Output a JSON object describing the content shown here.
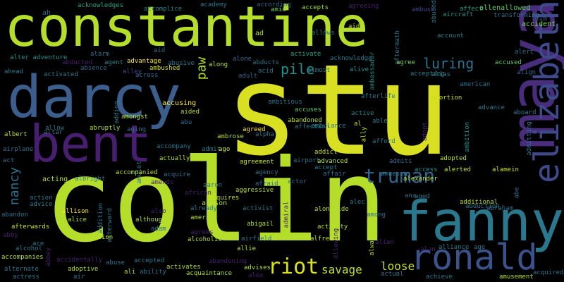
{
  "words": [
    {
      "text": "stu",
      "color": "#d9e021",
      "vertical": false
    },
    {
      "text": "colin",
      "color": "#b5de2b",
      "vertical": false
    },
    {
      "text": "constantine",
      "color": "#b5de2b",
      "vertical": false
    },
    {
      "text": "darcy",
      "color": "#3b5e8c",
      "vertical": false
    },
    {
      "text": "maya",
      "color": "#472d7b",
      "vertical": true
    },
    {
      "text": "bent",
      "color": "#481f70",
      "vertical": false
    },
    {
      "text": "fanny",
      "color": "#2a788e",
      "vertical": false
    },
    {
      "text": "elizabeth",
      "color": "#3e4a89",
      "vertical": true
    },
    {
      "text": "ronald",
      "color": "#3b528b",
      "vertical": false
    },
    {
      "text": "truman",
      "color": "#33638d",
      "vertical": false
    },
    {
      "text": "riot",
      "color": "#d8e219",
      "vertical": false
    },
    {
      "text": "luring",
      "color": "#2c728e",
      "vertical": false
    },
    {
      "text": "pile",
      "color": "#21918c",
      "vertical": false
    },
    {
      "text": "nancy",
      "color": "#2c718e",
      "vertical": true
    },
    {
      "text": "savage",
      "color": "#c0df25",
      "vertical": false
    },
    {
      "text": "loose",
      "color": "#c8e020",
      "vertical": false
    },
    {
      "text": "paw",
      "color": "#b5de2b",
      "vertical": true
    },
    {
      "text": "aim",
      "color": "#38598c",
      "vertical": false
    },
    {
      "text": "ah",
      "color": "#2e6e8e",
      "vertical": false
    },
    {
      "text": "acknowledges",
      "color": "#22a884",
      "vertical": false
    },
    {
      "text": "accomplice",
      "color": "#25858e",
      "vertical": false
    },
    {
      "text": "academy",
      "color": "#2a788e",
      "vertical": false
    },
    {
      "text": "according",
      "color": "#31688e",
      "vertical": false
    },
    {
      "text": "amid",
      "color": "#7ad151",
      "vertical": false
    },
    {
      "text": "accepts",
      "color": "#a0da39",
      "vertical": false
    },
    {
      "text": "agreeing",
      "color": "#481f70",
      "vertical": false
    },
    {
      "text": "ambush",
      "color": "#3e4989",
      "vertical": false
    },
    {
      "text": "abused",
      "color": "#2a788e",
      "vertical": true
    },
    {
      "text": "affect",
      "color": "#1fa187",
      "vertical": false
    },
    {
      "text": "allenallowed",
      "color": "#5ec962",
      "vertical": false
    },
    {
      "text": "aircraft",
      "color": "#21918c",
      "vertical": false
    },
    {
      "text": "transforming",
      "color": "#2c728e",
      "vertical": false
    },
    {
      "text": "accident",
      "color": "#7ad151",
      "vertical": false
    },
    {
      "text": "account",
      "color": "#26828e",
      "vertical": false
    },
    {
      "text": "ad",
      "color": "#b5de2b",
      "vertical": false
    },
    {
      "text": "allows",
      "color": "#2a788e",
      "vertical": false
    },
    {
      "text": "aide",
      "color": "#c8e020",
      "vertical": false
    },
    {
      "text": "aftermath",
      "color": "#2a788e",
      "vertical": true
    },
    {
      "text": "alter adventure",
      "color": "#21918c",
      "vertical": false
    },
    {
      "text": "aid",
      "color": "#2c728e",
      "vertical": false
    },
    {
      "text": "alarm",
      "color": "#2c728e",
      "vertical": false
    },
    {
      "text": "abducted",
      "color": "#481f70",
      "vertical": false
    },
    {
      "text": "agent",
      "color": "#26828e",
      "vertical": false
    },
    {
      "text": "advantage",
      "color": "#fde725",
      "vertical": false
    },
    {
      "text": "alley",
      "color": "#3e4989",
      "vertical": false
    },
    {
      "text": "ambushed",
      "color": "#d8e219",
      "vertical": false
    },
    {
      "text": "abusive",
      "color": "#2a788e",
      "vertical": false
    },
    {
      "text": "along",
      "color": "#b5de2b",
      "vertical": false
    },
    {
      "text": "alone",
      "color": "#31688e",
      "vertical": false
    },
    {
      "text": "abducts",
      "color": "#2c728e",
      "vertical": false
    },
    {
      "text": "activate",
      "color": "#22a884",
      "vertical": false
    },
    {
      "text": "acknowledge",
      "color": "#2a788e",
      "vertical": false
    },
    {
      "text": "ambassador",
      "color": "#21918c",
      "vertical": true
    },
    {
      "text": "agree",
      "color": "#7ad151",
      "vertical": false
    },
    {
      "text": "accused",
      "color": "#5ec962",
      "vertical": false
    },
    {
      "text": "alert",
      "color": "#2c728e",
      "vertical": false
    },
    {
      "text": "ahead",
      "color": "#2a788e",
      "vertical": false
    },
    {
      "text": "absence",
      "color": "#31688e",
      "vertical": false
    },
    {
      "text": "activated",
      "color": "#2a788e",
      "vertical": false
    },
    {
      "text": "across",
      "color": "#31688e",
      "vertical": false
    },
    {
      "text": "adult",
      "color": "#31688e",
      "vertical": false
    },
    {
      "text": "acid",
      "color": "#2c728e",
      "vertical": false
    },
    {
      "text": "almost",
      "color": "#2a788e",
      "vertical": false
    },
    {
      "text": "alive",
      "color": "#21918c",
      "vertical": false
    },
    {
      "text": "accepting",
      "color": "#26828e",
      "vertical": false
    },
    {
      "text": "alias",
      "color": "#2a788e",
      "vertical": false
    },
    {
      "text": "align",
      "color": "#31688e",
      "vertical": false
    },
    {
      "text": "american",
      "color": "#2c728e",
      "vertical": false
    },
    {
      "text": "afterlife",
      "color": "#2a788e",
      "vertical": false
    },
    {
      "text": "ambitious",
      "color": "#2c728e",
      "vertical": false
    },
    {
      "text": "accuses",
      "color": "#5ec962",
      "vertical": false
    },
    {
      "text": "abortion",
      "color": "#c8e020",
      "vertical": false
    },
    {
      "text": "advance",
      "color": "#2a788e",
      "vertical": false
    },
    {
      "text": "aboard",
      "color": "#2a788e",
      "vertical": false
    },
    {
      "text": "accusing",
      "color": "#fde725",
      "vertical": false
    },
    {
      "text": "adding",
      "color": "#2a788e",
      "vertical": true
    },
    {
      "text": "amongst",
      "color": "#b5de2b",
      "vertical": false
    },
    {
      "text": "aided",
      "color": "#b5de2b",
      "vertical": false
    },
    {
      "text": "abu",
      "color": "#2c728e",
      "vertical": false
    },
    {
      "text": "abandoned",
      "color": "#c0df25",
      "vertical": false
    },
    {
      "text": "affection",
      "color": "#2a788e",
      "vertical": false
    },
    {
      "text": "active",
      "color": "#26828e",
      "vertical": false
    },
    {
      "text": "able",
      "color": "#2a788e",
      "vertical": false
    },
    {
      "text": "admitting",
      "color": "#2c728e",
      "vertical": true
    },
    {
      "text": "albert",
      "color": "#b5de2b",
      "vertical": false
    },
    {
      "text": "allow",
      "color": "#2a788e",
      "vertical": false
    },
    {
      "text": "altar",
      "color": "#2c728e",
      "vertical": false
    },
    {
      "text": "abruptly",
      "color": "#b5de2b",
      "vertical": false
    },
    {
      "text": "aging",
      "color": "#2c728e",
      "vertical": false
    },
    {
      "text": "agreed",
      "color": "#fde725",
      "vertical": false
    },
    {
      "text": "alpha",
      "color": "#2a788e",
      "vertical": false
    },
    {
      "text": "al",
      "color": "#c0df25",
      "vertical": false
    },
    {
      "text": "ally",
      "color": "#c8e020",
      "vertical": true
    },
    {
      "text": "adopt",
      "color": "#481f70",
      "vertical": true
    },
    {
      "text": "ambulance",
      "color": "#2a788e",
      "vertical": false
    },
    {
      "text": "airplane",
      "color": "#2c728e",
      "vertical": false
    },
    {
      "text": "accompany",
      "color": "#2a788e",
      "vertical": false
    },
    {
      "text": "admit",
      "color": "#2a788e",
      "vertical": false
    },
    {
      "text": "ago",
      "color": "#c8e020",
      "vertical": false
    },
    {
      "text": "ambrose",
      "color": "#b5de2b",
      "vertical": false
    },
    {
      "text": "airport",
      "color": "#2c728e",
      "vertical": false
    },
    {
      "text": "addict",
      "color": "#c8e020",
      "vertical": false
    },
    {
      "text": "afford",
      "color": "#2a788e",
      "vertical": false
    },
    {
      "text": "actually",
      "color": "#b5de2b",
      "vertical": false
    },
    {
      "text": "amulet",
      "color": "#2a788e",
      "vertical": true
    },
    {
      "text": "agreement",
      "color": "#c8e020",
      "vertical": false
    },
    {
      "text": "advanced",
      "color": "#b5de2b",
      "vertical": false
    },
    {
      "text": "admits",
      "color": "#31688e",
      "vertical": false
    },
    {
      "text": "accept",
      "color": "#2a788e",
      "vertical": false
    },
    {
      "text": "adopted",
      "color": "#b5de2b",
      "vertical": false
    },
    {
      "text": "ambition",
      "color": "#21918c",
      "vertical": true
    },
    {
      "text": "act",
      "color": "#2c728e",
      "vertical": false
    },
    {
      "text": "affair",
      "color": "#2c728e",
      "vertical": false
    },
    {
      "text": "access",
      "color": "#21918c",
      "vertical": false
    },
    {
      "text": "alerted",
      "color": "#c8e020",
      "vertical": false
    },
    {
      "text": "alamein",
      "color": "#c8e020",
      "vertical": false
    },
    {
      "text": "accompanied",
      "color": "#b5de2b",
      "vertical": false
    },
    {
      "text": "acquire",
      "color": "#2c728e",
      "vertical": false
    },
    {
      "text": "agency",
      "color": "#2c728e",
      "vertical": false
    },
    {
      "text": "amnesia",
      "color": "#2a788e",
      "vertical": false
    },
    {
      "text": "alexander",
      "color": "#b5de2b",
      "vertical": false
    },
    {
      "text": "albright",
      "color": "#2c728e",
      "vertical": false
    },
    {
      "text": "amends",
      "color": "#481f70",
      "vertical": false
    },
    {
      "text": "aaron",
      "color": "#2c728e",
      "vertical": false
    },
    {
      "text": "afraid",
      "color": "#2a788e",
      "vertical": false
    },
    {
      "text": "actor",
      "color": "#31688e",
      "vertical": false
    },
    {
      "text": "alec",
      "color": "#2a788e",
      "vertical": false
    },
    {
      "text": "abe",
      "color": "#2c728e",
      "vertical": true
    },
    {
      "text": "acting",
      "color": "#b5de2b",
      "vertical": false
    },
    {
      "text": "african",
      "color": "#481f70",
      "vertical": false
    },
    {
      "text": "acquires",
      "color": "#c8e020",
      "vertical": false
    },
    {
      "text": "aggressive",
      "color": "#b5de2b",
      "vertical": false
    },
    {
      "text": "ana",
      "color": "#2c728e",
      "vertical": false
    },
    {
      "text": "aged",
      "color": "#2a788e",
      "vertical": false
    },
    {
      "text": "additional",
      "color": "#b5de2b",
      "vertical": false
    },
    {
      "text": "action",
      "color": "#2a788e",
      "vertical": false
    },
    {
      "text": "advice",
      "color": "#2a788e",
      "vertical": false
    },
    {
      "text": "alison",
      "color": "#b5de2b",
      "vertical": false
    },
    {
      "text": "already",
      "color": "#2a788e",
      "vertical": false
    },
    {
      "text": "activist",
      "color": "#2a788e",
      "vertical": false
    },
    {
      "text": "alongside",
      "color": "#b5de2b",
      "vertical": false
    },
    {
      "text": "abduction",
      "color": "#2a788e",
      "vertical": false
    },
    {
      "text": "abraham",
      "color": "#2c728e",
      "vertical": false
    },
    {
      "text": "abandon",
      "color": "#2c728e",
      "vertical": false
    },
    {
      "text": "allison",
      "color": "#fde725",
      "vertical": false
    },
    {
      "text": "addition",
      "color": "#2a788e",
      "vertical": true
    },
    {
      "text": "also",
      "color": "#481f70",
      "vertical": false
    },
    {
      "text": "among",
      "color": "#2c728e",
      "vertical": false
    },
    {
      "text": "alice",
      "color": "#b5de2b",
      "vertical": false
    },
    {
      "text": "although",
      "color": "#b5de2b",
      "vertical": false
    },
    {
      "text": "america",
      "color": "#b5de2b",
      "vertical": false
    },
    {
      "text": "abigail",
      "color": "#b5de2b",
      "vertical": false
    },
    {
      "text": "afterwards",
      "color": "#c8e020",
      "vertical": false
    },
    {
      "text": "afterward",
      "color": "#2a788e",
      "vertical": true
    },
    {
      "text": "adam",
      "color": "#2c728e",
      "vertical": false
    },
    {
      "text": "agrees",
      "color": "#481f70",
      "vertical": false
    },
    {
      "text": "admiral",
      "color": "#481f70",
      "vertical": true
    },
    {
      "text": "activity",
      "color": "#b5de2b",
      "vertical": false
    },
    {
      "text": "abby",
      "color": "#481f70",
      "vertical": false
    },
    {
      "text": "ammunition",
      "color": "#b5de2b",
      "vertical": false
    },
    {
      "text": "alcoholic",
      "color": "#b5de2b",
      "vertical": false
    },
    {
      "text": "airfield",
      "color": "#2a788e",
      "vertical": false
    },
    {
      "text": "alfred",
      "color": "#c8e020",
      "vertical": false
    },
    {
      "text": "allowing",
      "color": "#481f70",
      "vertical": true
    },
    {
      "text": "always",
      "color": "#b5de2b",
      "vertical": true
    },
    {
      "text": "alien",
      "color": "#481f70",
      "vertical": false
    },
    {
      "text": "alliance",
      "color": "#2a788e",
      "vertical": false
    },
    {
      "text": "age",
      "color": "#2c728e",
      "vertical": false
    },
    {
      "text": "ace",
      "color": "#2a788e",
      "vertical": false
    },
    {
      "text": "allie",
      "color": "#b5de2b",
      "vertical": false
    },
    {
      "text": "alcohol",
      "color": "#2a788e",
      "vertical": false
    },
    {
      "text": "alan",
      "color": "#481f70",
      "vertical": false
    },
    {
      "text": "abbey",
      "color": "#481f70",
      "vertical": true
    },
    {
      "text": "accompanies",
      "color": "#b5de2b",
      "vertical": false
    },
    {
      "text": "accidentally",
      "color": "#481f70",
      "vertical": false
    },
    {
      "text": "adoptive",
      "color": "#b5de2b",
      "vertical": false
    },
    {
      "text": "abuse",
      "color": "#2c728e",
      "vertical": false
    },
    {
      "text": "accepted",
      "color": "#2a788e",
      "vertical": false
    },
    {
      "text": "abandoning",
      "color": "#481f70",
      "vertical": false
    },
    {
      "text": "advises",
      "color": "#b5de2b",
      "vertical": false
    },
    {
      "text": "actual",
      "color": "#2c728e",
      "vertical": false
    },
    {
      "text": "alternate",
      "color": "#2a788e",
      "vertical": false
    },
    {
      "text": "ali",
      "color": "#b5de2b",
      "vertical": false
    },
    {
      "text": "ability",
      "color": "#2c728e",
      "vertical": false
    },
    {
      "text": "activates",
      "color": "#b5de2b",
      "vertical": false
    },
    {
      "text": "acquaintance",
      "color": "#b5de2b",
      "vertical": false
    },
    {
      "text": "alex",
      "color": "#481f70",
      "vertical": false
    },
    {
      "text": "achieve",
      "color": "#2a788e",
      "vertical": false
    },
    {
      "text": "amusement",
      "color": "#b5de2b",
      "vertical": false
    },
    {
      "text": "acquired",
      "color": "#2c728e",
      "vertical": false
    },
    {
      "text": "actress",
      "color": "#2a788e",
      "vertical": false
    },
    {
      "text": "air",
      "color": "#2c728e",
      "vertical": false
    }
  ]
}
